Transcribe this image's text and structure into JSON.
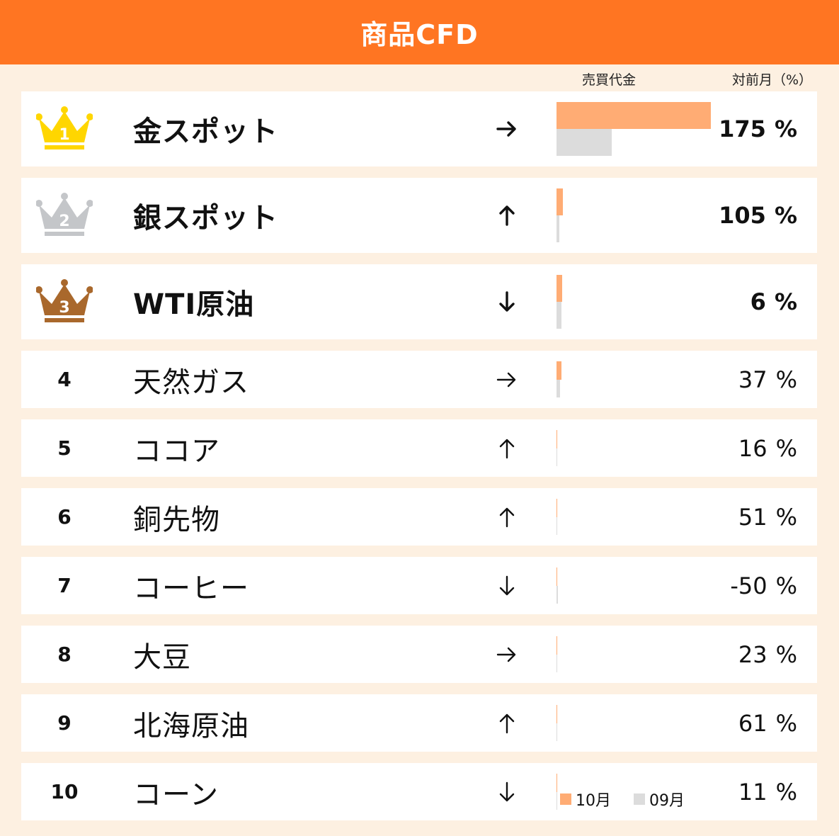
{
  "header": {
    "title": "商品CFD"
  },
  "columns": {
    "volume": "売買代金",
    "change": "対前月（%）"
  },
  "legend": {
    "current": "10月",
    "previous": "09月"
  },
  "unit": "%",
  "colors": {
    "current": "#ffac74",
    "previous": "#dcdcdc",
    "gold": "#ffd600",
    "silver": "#c4c6c9",
    "bronze": "#a9682c",
    "header": "#ff7522"
  },
  "chart_data": {
    "type": "bar",
    "categories": [
      "金スポット",
      "銀スポット",
      "WTI原油",
      "天然ガス",
      "ココア",
      "銅先物",
      "コーヒー",
      "大豆",
      "北海原油",
      "コーン"
    ],
    "series": [
      {
        "name": "10月",
        "values": [
          100,
          4,
          3.5,
          3,
          0.5,
          0.5,
          0.4,
          0.4,
          0.4,
          0.3
        ]
      },
      {
        "name": "09月",
        "values": [
          36,
          2,
          3.3,
          2.2,
          0.4,
          0.35,
          0.8,
          0.3,
          0.25,
          0.25
        ]
      }
    ],
    "rows": [
      {
        "rank": "1",
        "name": "金スポット",
        "trend": "right",
        "change": "175"
      },
      {
        "rank": "2",
        "name": "銀スポット",
        "trend": "up",
        "change": "105"
      },
      {
        "rank": "3",
        "name": "WTI原油",
        "trend": "down",
        "change": "6"
      },
      {
        "rank": "4",
        "name": "天然ガス",
        "trend": "right",
        "change": "37"
      },
      {
        "rank": "5",
        "name": "ココア",
        "trend": "up",
        "change": "16"
      },
      {
        "rank": "6",
        "name": "銅先物",
        "trend": "up",
        "change": "51"
      },
      {
        "rank": "7",
        "name": "コーヒー",
        "trend": "down",
        "change": "-50"
      },
      {
        "rank": "8",
        "name": "大豆",
        "trend": "right",
        "change": "23"
      },
      {
        "rank": "9",
        "name": "北海原油",
        "trend": "up",
        "change": "61"
      },
      {
        "rank": "10",
        "name": "コーン",
        "trend": "down",
        "change": "11"
      }
    ]
  }
}
